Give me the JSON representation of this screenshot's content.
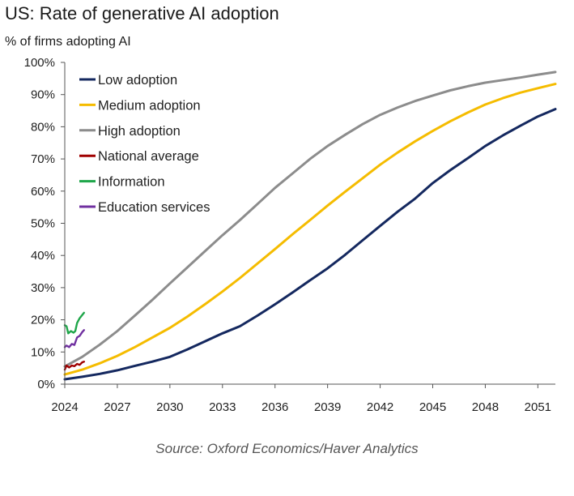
{
  "chart_data": {
    "type": "line",
    "title": "US: Rate of generative AI adoption",
    "ylabel": "% of firms adopting AI",
    "xlabel": "",
    "source": "Source: Oxford Economics/Haver Analytics",
    "xlim": [
      2024,
      2052
    ],
    "ylim": [
      0,
      100
    ],
    "x_ticks": [
      2024,
      2027,
      2030,
      2033,
      2036,
      2039,
      2042,
      2045,
      2048,
      2051
    ],
    "x_tick_labels": [
      "2024",
      "2027",
      "2030",
      "2033",
      "2036",
      "2039",
      "2042",
      "2045",
      "2048",
      "2051"
    ],
    "y_ticks": [
      0,
      10,
      20,
      30,
      40,
      50,
      60,
      70,
      80,
      90,
      100
    ],
    "y_tick_labels": [
      "0%",
      "10%",
      "20%",
      "30%",
      "40%",
      "50%",
      "60%",
      "70%",
      "80%",
      "90%",
      "100%"
    ],
    "grid": false,
    "legend_position": "top-left",
    "series": [
      {
        "name": "Low adoption",
        "color": "#14285f",
        "points": [
          [
            2024.0,
            1.5
          ],
          [
            2025,
            2.3
          ],
          [
            2026,
            3.2
          ],
          [
            2027,
            4.3
          ],
          [
            2028,
            5.7
          ],
          [
            2029,
            7.0
          ],
          [
            2030,
            8.5
          ],
          [
            2031,
            10.8
          ],
          [
            2032,
            13.3
          ],
          [
            2033,
            15.8
          ],
          [
            2034,
            18.0
          ],
          [
            2035,
            21.3
          ],
          [
            2036,
            24.8
          ],
          [
            2037,
            28.5
          ],
          [
            2038,
            32.3
          ],
          [
            2039,
            36.0
          ],
          [
            2040,
            40.2
          ],
          [
            2041,
            44.7
          ],
          [
            2042,
            49.2
          ],
          [
            2043,
            53.6
          ],
          [
            2044,
            57.7
          ],
          [
            2045,
            62.5
          ],
          [
            2046,
            66.5
          ],
          [
            2047,
            70.2
          ],
          [
            2048,
            74.0
          ],
          [
            2049,
            77.3
          ],
          [
            2050,
            80.3
          ],
          [
            2051,
            83.2
          ],
          [
            2052,
            85.5
          ]
        ]
      },
      {
        "name": "Medium adoption",
        "color": "#f5bc00",
        "points": [
          [
            2024.0,
            3.0
          ],
          [
            2025,
            4.5
          ],
          [
            2026,
            6.5
          ],
          [
            2027,
            8.8
          ],
          [
            2028,
            11.5
          ],
          [
            2029,
            14.5
          ],
          [
            2030,
            17.5
          ],
          [
            2031,
            21.0
          ],
          [
            2032,
            24.8
          ],
          [
            2033,
            28.8
          ],
          [
            2034,
            33.0
          ],
          [
            2035,
            37.5
          ],
          [
            2036,
            42.0
          ],
          [
            2037,
            46.6
          ],
          [
            2038,
            51.0
          ],
          [
            2039,
            55.5
          ],
          [
            2040,
            59.8
          ],
          [
            2041,
            64.0
          ],
          [
            2042,
            68.2
          ],
          [
            2043,
            72.0
          ],
          [
            2044,
            75.5
          ],
          [
            2045,
            78.7
          ],
          [
            2046,
            81.7
          ],
          [
            2047,
            84.4
          ],
          [
            2048,
            86.9
          ],
          [
            2049,
            88.9
          ],
          [
            2050,
            90.6
          ],
          [
            2051,
            92.0
          ],
          [
            2052,
            93.3
          ]
        ]
      },
      {
        "name": "High adoption",
        "color": "#8c8c8c",
        "points": [
          [
            2024.0,
            5.5
          ],
          [
            2025,
            8.5
          ],
          [
            2026,
            12.3
          ],
          [
            2027,
            16.5
          ],
          [
            2028,
            21.3
          ],
          [
            2029,
            26.2
          ],
          [
            2030,
            31.3
          ],
          [
            2031,
            36.3
          ],
          [
            2032,
            41.3
          ],
          [
            2033,
            46.3
          ],
          [
            2034,
            51.0
          ],
          [
            2035,
            56.0
          ],
          [
            2036,
            61.0
          ],
          [
            2037,
            65.5
          ],
          [
            2038,
            70.0
          ],
          [
            2039,
            74.0
          ],
          [
            2040,
            77.5
          ],
          [
            2041,
            80.8
          ],
          [
            2042,
            83.7
          ],
          [
            2043,
            86.0
          ],
          [
            2044,
            88.0
          ],
          [
            2045,
            89.7
          ],
          [
            2046,
            91.3
          ],
          [
            2047,
            92.6
          ],
          [
            2048,
            93.7
          ],
          [
            2049,
            94.5
          ],
          [
            2050,
            95.3
          ],
          [
            2051,
            96.2
          ],
          [
            2052,
            97.0
          ]
        ]
      },
      {
        "name": "National average",
        "color": "#a00000",
        "points": [
          [
            2024.0,
            4.5
          ],
          [
            2024.1,
            5.8
          ],
          [
            2024.25,
            5.2
          ],
          [
            2024.4,
            5.8
          ],
          [
            2024.55,
            5.6
          ],
          [
            2024.7,
            6.3
          ],
          [
            2024.85,
            6.0
          ],
          [
            2025.0,
            6.8
          ],
          [
            2025.1,
            7.0
          ]
        ]
      },
      {
        "name": "Information",
        "color": "#1fa64a",
        "points": [
          [
            2024.0,
            18.3
          ],
          [
            2024.1,
            18.0
          ],
          [
            2024.2,
            15.8
          ],
          [
            2024.35,
            16.5
          ],
          [
            2024.5,
            16.0
          ],
          [
            2024.6,
            16.5
          ],
          [
            2024.7,
            19.0
          ],
          [
            2024.85,
            20.5
          ],
          [
            2025.0,
            21.5
          ],
          [
            2025.1,
            22.2
          ]
        ]
      },
      {
        "name": "Education services",
        "color": "#7030a0",
        "points": [
          [
            2024.0,
            11.5
          ],
          [
            2024.1,
            12.0
          ],
          [
            2024.25,
            11.5
          ],
          [
            2024.4,
            12.5
          ],
          [
            2024.55,
            12.2
          ],
          [
            2024.7,
            14.5
          ],
          [
            2024.85,
            15.0
          ],
          [
            2025.0,
            16.2
          ],
          [
            2025.1,
            16.8
          ]
        ]
      }
    ]
  }
}
